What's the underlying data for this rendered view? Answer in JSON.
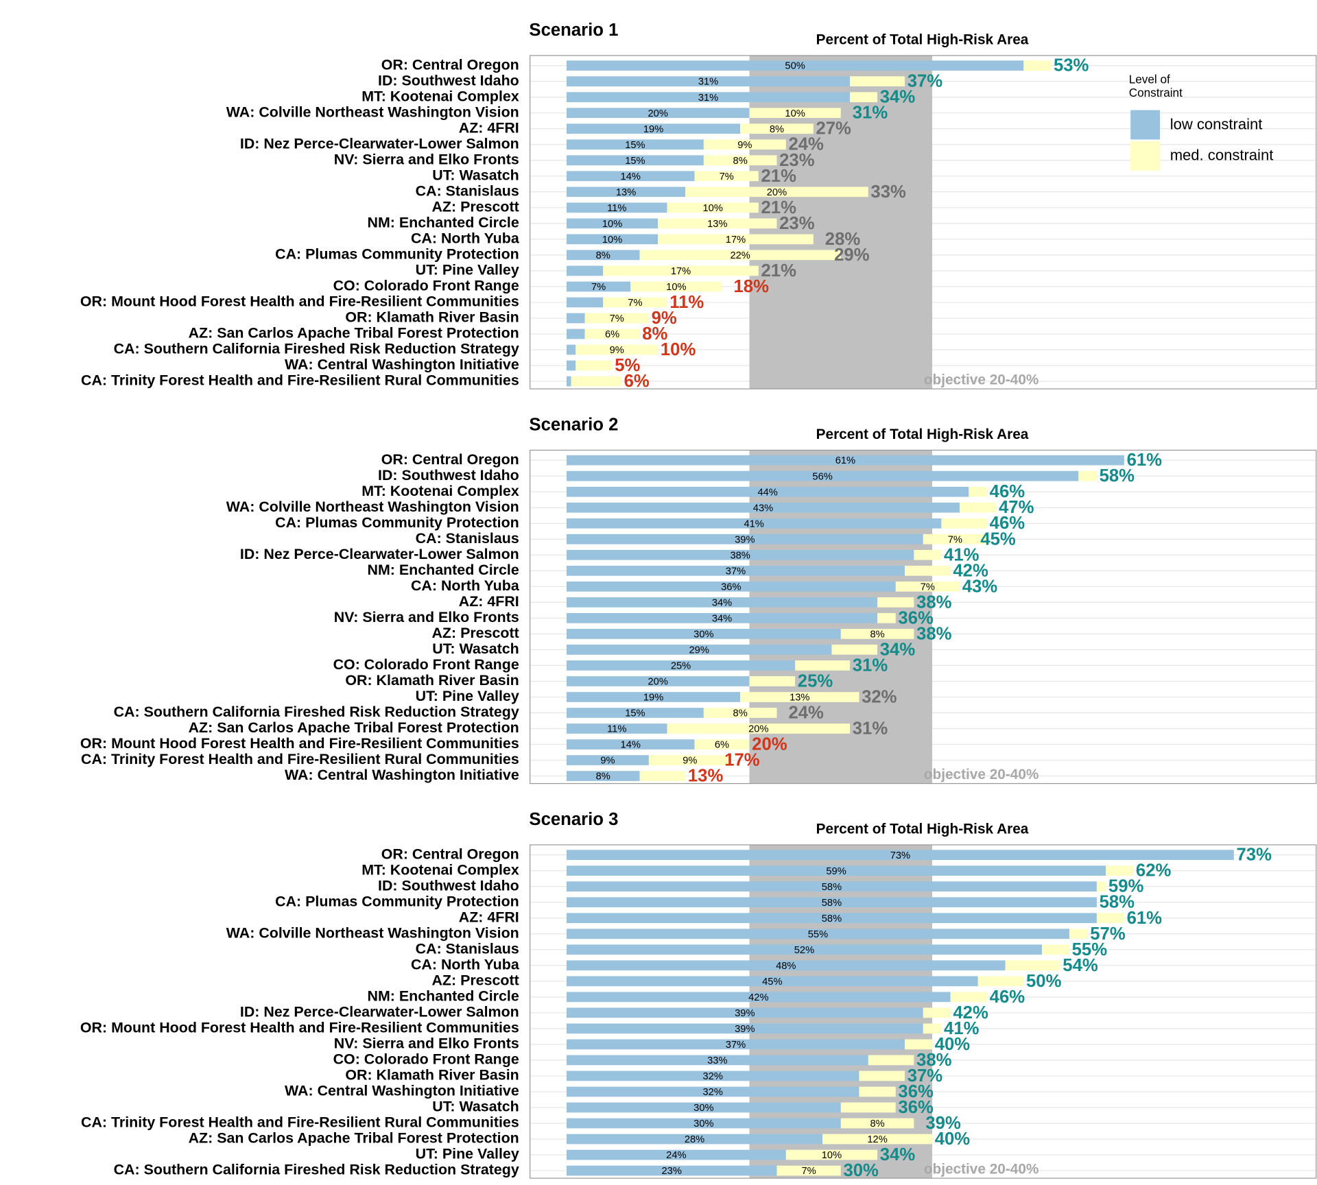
{
  "chart_data": [
    {
      "type": "bar",
      "orientation": "horizontal",
      "stacked": true,
      "title": "Scenario 1",
      "subtitle": "Percent of Total High-Risk Area",
      "categories": [
        "OR: Central Oregon",
        "ID: Southwest Idaho",
        "MT: Kootenai Complex",
        "WA: Colville Northeast Washington Vision",
        "AZ: 4FRI",
        "ID: Nez Perce-Clearwater-Lower Salmon",
        "NV: Sierra and Elko Fronts",
        "UT: Wasatch",
        "CA: Stanislaus",
        "AZ: Prescott",
        "NM: Enchanted Circle",
        "CA: North Yuba",
        "CA: Plumas Community Protection",
        "UT: Pine Valley",
        "CO: Colorado Front Range",
        "OR: Mount Hood Forest Health and Fire-Resilient Communities",
        "OR: Klamath River Basin",
        "AZ: San Carlos Apache Tribal Forest Protection",
        "CA: Southern California Fireshed Risk Reduction Strategy",
        "WA: Central Washington Initiative",
        "CA: Trinity Forest Health and Fire-Resilient Rural Communities"
      ],
      "series": [
        {
          "name": "low constraint",
          "color": "#99c2de",
          "values": [
            50,
            31,
            31,
            20,
            19,
            15,
            15,
            14,
            13,
            11,
            10,
            10,
            8,
            4,
            7,
            4,
            2,
            2,
            1,
            1,
            0.5
          ],
          "value_labels": [
            "50%",
            "31%",
            "31%",
            "20%",
            "19%",
            "15%",
            "15%",
            "14%",
            "13%",
            "11%",
            "10%",
            "10%",
            "8%",
            null,
            "7%",
            null,
            null,
            null,
            null,
            null,
            null
          ]
        },
        {
          "name": "med. constraint",
          "color": "#ffffc4",
          "values": [
            3,
            6,
            3,
            10,
            8,
            9,
            8,
            7,
            20,
            10,
            13,
            17,
            22,
            17,
            10,
            7,
            7,
            6,
            9,
            4,
            5.5
          ],
          "value_labels": [
            null,
            null,
            null,
            "10%",
            "8%",
            "9%",
            "8%",
            "7%",
            "20%",
            "10%",
            "13%",
            "17%",
            "22%",
            "17%",
            "10%",
            "7%",
            "7%",
            "6%",
            "9%",
            null,
            null
          ]
        }
      ],
      "totals": [
        53,
        37,
        34,
        31,
        27,
        24,
        23,
        21,
        33,
        21,
        23,
        28,
        29,
        21,
        18,
        11,
        9,
        8,
        10,
        5,
        6
      ],
      "total_labels": [
        "53%",
        "37%",
        "34%",
        "31%",
        "27%",
        "24%",
        "23%",
        "21%",
        "33%",
        "21%",
        "23%",
        "28%",
        "29%",
        "21%",
        "18%",
        "11%",
        "9%",
        "8%",
        "10%",
        "5%",
        "6%"
      ],
      "total_colors": [
        "#148a8a",
        "#148a8a",
        "#148a8a",
        "#148a8a",
        "#6e6e6e",
        "#6e6e6e",
        "#6e6e6e",
        "#6e6e6e",
        "#6e6e6e",
        "#6e6e6e",
        "#6e6e6e",
        "#6e6e6e",
        "#6e6e6e",
        "#6e6e6e",
        "#d0361a",
        "#d0361a",
        "#d0361a",
        "#d0361a",
        "#d0361a",
        "#d0361a",
        "#d0361a"
      ],
      "xlim": [
        -4,
        82
      ],
      "shade": {
        "range": [
          20,
          40
        ],
        "color": "#c0c0c0",
        "label": "objective 20-40%"
      },
      "legend": {
        "show": true,
        "title": "Level of Constraint",
        "position": "upper right"
      }
    },
    {
      "type": "bar",
      "orientation": "horizontal",
      "stacked": true,
      "title": "Scenario 2",
      "subtitle": "Percent of Total High-Risk Area",
      "categories": [
        "OR: Central Oregon",
        "ID: Southwest Idaho",
        "MT: Kootenai Complex",
        "WA: Colville Northeast Washington Vision",
        "CA: Plumas Community Protection",
        "CA: Stanislaus",
        "ID: Nez Perce-Clearwater-Lower Salmon",
        "NM: Enchanted Circle",
        "CA: North Yuba",
        "AZ: 4FRI",
        "NV: Sierra and Elko Fronts",
        "AZ: Prescott",
        "UT: Wasatch",
        "CO: Colorado Front Range",
        "OR: Klamath River Basin",
        "UT: Pine Valley",
        "CA: Southern California Fireshed Risk Reduction Strategy",
        "AZ: San Carlos Apache Tribal Forest Protection",
        "OR: Mount Hood Forest Health and Fire-Resilient Communities",
        "CA: Trinity Forest Health and Fire-Resilient Rural Communities",
        "WA: Central Washington Initiative"
      ],
      "series": [
        {
          "name": "low constraint",
          "color": "#99c2de",
          "values": [
            61,
            56,
            44,
            43,
            41,
            39,
            38,
            37,
            36,
            34,
            34,
            30,
            29,
            25,
            20,
            19,
            15,
            11,
            14,
            9,
            8
          ],
          "value_labels": [
            "61%",
            "56%",
            "44%",
            "43%",
            "41%",
            "39%",
            "38%",
            "37%",
            "36%",
            "34%",
            "34%",
            "30%",
            "29%",
            "25%",
            "20%",
            "19%",
            "15%",
            "11%",
            "14%",
            "9%",
            "8%"
          ]
        },
        {
          "name": "med. constraint",
          "color": "#ffffc4",
          "values": [
            0,
            2,
            2,
            4,
            5,
            7,
            3,
            5,
            7,
            4,
            2,
            8,
            5,
            6,
            5,
            13,
            8,
            20,
            6,
            9,
            5
          ],
          "value_labels": [
            null,
            null,
            null,
            null,
            null,
            "7%",
            null,
            null,
            "7%",
            null,
            null,
            "8%",
            null,
            null,
            null,
            "13%",
            "8%",
            "20%",
            "6%",
            "9%",
            null
          ]
        }
      ],
      "totals": [
        61,
        58,
        46,
        47,
        46,
        45,
        41,
        42,
        43,
        38,
        36,
        38,
        34,
        31,
        25,
        32,
        24,
        31,
        20,
        17,
        13
      ],
      "total_labels": [
        "61%",
        "58%",
        "46%",
        "47%",
        "46%",
        "45%",
        "41%",
        "42%",
        "43%",
        "38%",
        "36%",
        "38%",
        "34%",
        "31%",
        "25%",
        "32%",
        "24%",
        "31%",
        "20%",
        "17%",
        "13%"
      ],
      "total_colors": [
        "#148a8a",
        "#148a8a",
        "#148a8a",
        "#148a8a",
        "#148a8a",
        "#148a8a",
        "#148a8a",
        "#148a8a",
        "#148a8a",
        "#148a8a",
        "#148a8a",
        "#148a8a",
        "#148a8a",
        "#148a8a",
        "#148a8a",
        "#6e6e6e",
        "#6e6e6e",
        "#6e6e6e",
        "#d0361a",
        "#d0361a",
        "#d0361a"
      ],
      "xlim": [
        -4,
        82
      ],
      "shade": {
        "range": [
          20,
          40
        ],
        "color": "#c0c0c0",
        "label": "objective 20-40%"
      },
      "legend": {
        "show": false
      }
    },
    {
      "type": "bar",
      "orientation": "horizontal",
      "stacked": true,
      "title": "Scenario 3",
      "subtitle": "Percent of Total High-Risk Area",
      "categories": [
        "OR: Central Oregon",
        "MT: Kootenai Complex",
        "ID: Southwest Idaho",
        "CA: Plumas Community Protection",
        "AZ: 4FRI",
        "WA: Colville Northeast Washington Vision",
        "CA: Stanislaus",
        "CA: North Yuba",
        "AZ: Prescott",
        "NM: Enchanted Circle",
        "ID: Nez Perce-Clearwater-Lower Salmon",
        "OR: Mount Hood Forest Health and Fire-Resilient Communities",
        "NV: Sierra and Elko Fronts",
        "CO: Colorado Front Range",
        "OR: Klamath River Basin",
        "WA: Central Washington Initiative",
        "UT: Wasatch",
        "CA: Trinity Forest Health and Fire-Resilient Rural Communities",
        "AZ: San Carlos Apache Tribal Forest Protection",
        "UT: Pine Valley",
        "CA: Southern California Fireshed Risk Reduction Strategy"
      ],
      "series": [
        {
          "name": "low constraint",
          "color": "#99c2de",
          "values": [
            73,
            59,
            58,
            58,
            58,
            55,
            52,
            48,
            45,
            42,
            39,
            39,
            37,
            33,
            32,
            32,
            30,
            30,
            28,
            24,
            23
          ],
          "value_labels": [
            "73%",
            "59%",
            "58%",
            "58%",
            "58%",
            "55%",
            "52%",
            "48%",
            "45%",
            "42%",
            "39%",
            "39%",
            "37%",
            "33%",
            "32%",
            "32%",
            "30%",
            "30%",
            "28%",
            "24%",
            "23%"
          ]
        },
        {
          "name": "med. constraint",
          "color": "#ffffc4",
          "values": [
            0,
            3,
            1,
            0,
            3,
            2,
            3,
            6,
            5,
            4,
            3,
            2,
            3,
            5,
            5,
            4,
            6,
            8,
            12,
            10,
            7
          ],
          "value_labels": [
            null,
            null,
            null,
            null,
            null,
            null,
            null,
            null,
            null,
            null,
            null,
            null,
            null,
            null,
            null,
            null,
            null,
            "8%",
            "12%",
            "10%",
            "7%"
          ]
        }
      ],
      "totals": [
        73,
        62,
        59,
        58,
        61,
        57,
        55,
        54,
        50,
        46,
        42,
        41,
        40,
        38,
        37,
        36,
        36,
        39,
        40,
        34,
        30
      ],
      "total_labels": [
        "73%",
        "62%",
        "59%",
        "58%",
        "61%",
        "57%",
        "55%",
        "54%",
        "50%",
        "46%",
        "42%",
        "41%",
        "40%",
        "38%",
        "37%",
        "36%",
        "36%",
        "39%",
        "40%",
        "34%",
        "30%"
      ],
      "total_colors": [
        "#148a8a",
        "#148a8a",
        "#148a8a",
        "#148a8a",
        "#148a8a",
        "#148a8a",
        "#148a8a",
        "#148a8a",
        "#148a8a",
        "#148a8a",
        "#148a8a",
        "#148a8a",
        "#148a8a",
        "#148a8a",
        "#148a8a",
        "#148a8a",
        "#148a8a",
        "#148a8a",
        "#148a8a",
        "#148a8a",
        "#148a8a"
      ],
      "xlim": [
        -4,
        82
      ],
      "shade": {
        "range": [
          20,
          40
        ],
        "color": "#c0c0c0",
        "label": "objective 20-40%"
      },
      "legend": {
        "show": false
      }
    }
  ]
}
